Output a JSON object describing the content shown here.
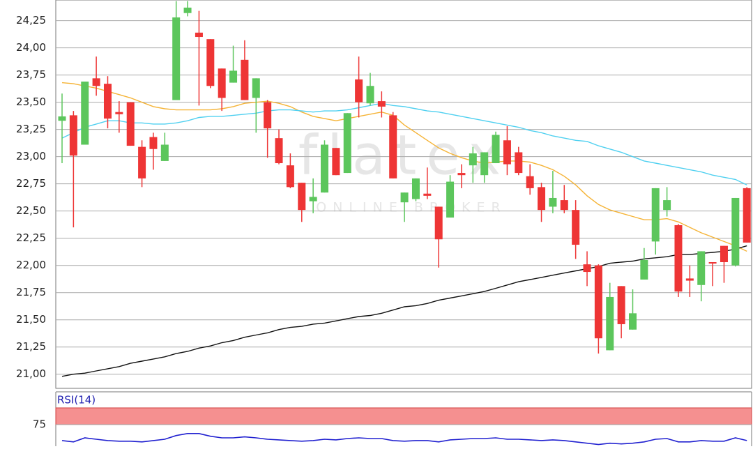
{
  "chart_data": [
    {
      "type": "candlestick",
      "watermark": "flatex",
      "watermark_sub": "ONLINE BROKER",
      "up_color": "#5cc65c",
      "down_color": "#ee3535",
      "open": [
        23.33,
        23.38,
        23.11,
        23.72,
        23.67,
        23.41,
        23.5,
        23.09,
        23.18,
        22.96,
        23.52,
        24.32,
        24.14,
        24.08,
        23.81,
        23.68,
        23.89,
        23.54,
        23.5,
        23.17,
        22.92,
        22.76,
        22.59,
        22.67,
        23.08,
        22.85,
        23.71,
        23.49,
        23.51,
        23.38,
        22.58,
        22.61,
        22.66,
        22.54,
        22.44,
        22.85,
        22.92,
        22.83,
        22.94,
        23.15,
        23.04,
        22.82,
        22.72,
        22.54,
        22.6,
        22.51,
        22.01,
        22.0,
        21.22,
        21.81,
        21.41,
        21.87,
        22.22,
        22.51,
        22.37,
        21.88,
        21.82,
        22.03,
        22.18,
        22.0,
        22.71
      ],
      "high": [
        23.58,
        23.42,
        23.69,
        23.92,
        23.74,
        23.51,
        23.5,
        23.15,
        23.22,
        23.22,
        24.43,
        24.43,
        24.34,
        24.08,
        23.81,
        24.02,
        24.07,
        23.72,
        23.52,
        23.25,
        23.03,
        22.76,
        22.8,
        23.15,
        23.08,
        23.4,
        23.92,
        23.77,
        23.6,
        23.41,
        22.67,
        22.8,
        22.9,
        22.54,
        22.83,
        22.93,
        23.09,
        23.04,
        23.23,
        23.28,
        23.09,
        22.93,
        22.76,
        22.87,
        22.74,
        22.6,
        22.13,
        22.01,
        21.84,
        21.81,
        21.78,
        22.16,
        22.71,
        22.72,
        22.38,
        22.0,
        22.13,
        22.03,
        22.18,
        22.62,
        22.72
      ],
      "low": [
        22.94,
        22.35,
        23.11,
        23.56,
        23.26,
        23.22,
        23.1,
        22.72,
        22.88,
        22.96,
        23.52,
        24.29,
        23.47,
        23.63,
        23.42,
        23.68,
        23.52,
        23.22,
        22.99,
        22.93,
        22.71,
        22.4,
        22.48,
        22.67,
        22.83,
        22.85,
        23.36,
        23.47,
        23.36,
        22.8,
        22.4,
        22.59,
        22.61,
        21.98,
        22.44,
        22.71,
        22.76,
        22.76,
        22.94,
        22.83,
        22.83,
        22.65,
        22.4,
        22.48,
        22.48,
        22.06,
        21.81,
        21.19,
        21.22,
        21.33,
        21.41,
        21.87,
        22.1,
        22.45,
        21.71,
        21.71,
        21.67,
        21.81,
        21.84,
        21.99,
        22.21
      ],
      "close": [
        23.37,
        23.01,
        23.69,
        23.65,
        23.35,
        23.39,
        23.1,
        22.8,
        23.07,
        23.11,
        24.28,
        24.37,
        24.1,
        23.65,
        23.54,
        23.79,
        23.52,
        23.72,
        23.26,
        22.94,
        22.72,
        22.51,
        22.63,
        23.11,
        22.83,
        23.4,
        23.5,
        23.65,
        23.46,
        22.8,
        22.67,
        22.8,
        22.64,
        22.24,
        22.77,
        22.83,
        23.03,
        23.04,
        23.2,
        22.93,
        22.85,
        22.71,
        22.51,
        22.62,
        22.51,
        22.19,
        21.94,
        21.33,
        21.71,
        21.46,
        21.56,
        22.05,
        22.71,
        22.6,
        21.76,
        21.86,
        22.13,
        22.02,
        22.03,
        22.62,
        22.21
      ],
      "lines": [
        {
          "color": "#f5b335",
          "values": [
            23.68,
            23.67,
            23.65,
            23.63,
            23.6,
            23.57,
            23.54,
            23.5,
            23.46,
            23.44,
            23.43,
            23.43,
            23.43,
            23.43,
            23.44,
            23.46,
            23.49,
            23.5,
            23.51,
            23.49,
            23.46,
            23.41,
            23.37,
            23.35,
            23.33,
            23.35,
            23.37,
            23.39,
            23.41,
            23.38,
            23.29,
            23.22,
            23.15,
            23.08,
            23.03,
            22.99,
            22.96,
            22.94,
            22.95,
            22.96,
            22.96,
            22.95,
            22.92,
            22.88,
            22.82,
            22.74,
            22.64,
            22.56,
            22.51,
            22.48,
            22.45,
            22.42,
            22.42,
            22.43,
            22.4,
            22.35,
            22.3,
            22.26,
            22.22,
            22.18,
            22.13
          ]
        },
        {
          "color": "#4fd0f0",
          "values": [
            23.17,
            23.22,
            23.27,
            23.3,
            23.33,
            23.33,
            23.31,
            23.31,
            23.3,
            23.3,
            23.31,
            23.33,
            23.36,
            23.37,
            23.37,
            23.38,
            23.39,
            23.4,
            23.42,
            23.43,
            23.43,
            23.42,
            23.41,
            23.42,
            23.42,
            23.43,
            23.45,
            23.47,
            23.49,
            23.47,
            23.46,
            23.44,
            23.42,
            23.41,
            23.39,
            23.37,
            23.35,
            23.33,
            23.31,
            23.29,
            23.27,
            23.24,
            23.22,
            23.19,
            23.17,
            23.15,
            23.14,
            23.1,
            23.07,
            23.04,
            23.0,
            22.96,
            22.94,
            22.92,
            22.9,
            22.88,
            22.86,
            22.83,
            22.81,
            22.79,
            22.74
          ]
        },
        {
          "color": "#111111",
          "values": [
            20.98,
            21.0,
            21.01,
            21.03,
            21.05,
            21.07,
            21.1,
            21.12,
            21.14,
            21.16,
            21.19,
            21.21,
            21.24,
            21.26,
            21.29,
            21.31,
            21.34,
            21.36,
            21.38,
            21.41,
            21.43,
            21.44,
            21.46,
            21.47,
            21.49,
            21.51,
            21.53,
            21.54,
            21.56,
            21.59,
            21.62,
            21.63,
            21.65,
            21.68,
            21.7,
            21.72,
            21.74,
            21.76,
            21.79,
            21.82,
            21.85,
            21.87,
            21.89,
            21.91,
            21.93,
            21.95,
            21.97,
            21.99,
            22.02,
            22.03,
            22.04,
            22.06,
            22.07,
            22.08,
            22.1,
            22.1,
            22.11,
            22.12,
            22.13,
            22.15,
            22.18
          ]
        }
      ],
      "ylim": [
        20.87,
        24.44
      ],
      "yticks": [
        {
          "value": 21,
          "label": "21,00"
        },
        {
          "value": 21.25,
          "label": "21,25"
        },
        {
          "value": 21.5,
          "label": "21,50"
        },
        {
          "value": 21.75,
          "label": "21,75"
        },
        {
          "value": 22,
          "label": "22,00"
        },
        {
          "value": 22.25,
          "label": "22,25"
        },
        {
          "value": 22.5,
          "label": "22,50"
        },
        {
          "value": 22.75,
          "label": "22,75"
        },
        {
          "value": 23,
          "label": "23,00"
        },
        {
          "value": 23.25,
          "label": "23,25"
        },
        {
          "value": 23.5,
          "label": "23,50"
        },
        {
          "value": 23.75,
          "label": "23,75"
        },
        {
          "value": 24,
          "label": "24,00"
        },
        {
          "value": 24.25,
          "label": "24,25"
        }
      ],
      "grid": true
    },
    {
      "type": "line",
      "title": "RSI(14)",
      "color": "#2020d0",
      "band": [
        75,
        80
      ],
      "band_color": "#f59090",
      "values": [
        70.2,
        69.8,
        71.0,
        70.6,
        70.2,
        70.0,
        70.0,
        69.8,
        70.2,
        70.6,
        71.7,
        72.3,
        72.3,
        71.5,
        71.0,
        71.0,
        71.3,
        71.0,
        70.6,
        70.4,
        70.2,
        70.0,
        70.2,
        70.6,
        70.4,
        70.8,
        71.0,
        70.8,
        70.8,
        70.2,
        70.0,
        70.2,
        70.2,
        69.8,
        70.4,
        70.6,
        70.8,
        70.8,
        71.0,
        70.6,
        70.6,
        70.4,
        70.2,
        70.4,
        70.2,
        69.8,
        69.4,
        69.0,
        69.4,
        69.2,
        69.4,
        69.8,
        70.6,
        70.8,
        69.8,
        69.8,
        70.2,
        70.0,
        70.0,
        71.0,
        70.2
      ],
      "ylim": [
        68.5,
        80
      ],
      "yticks": [
        75
      ]
    }
  ]
}
